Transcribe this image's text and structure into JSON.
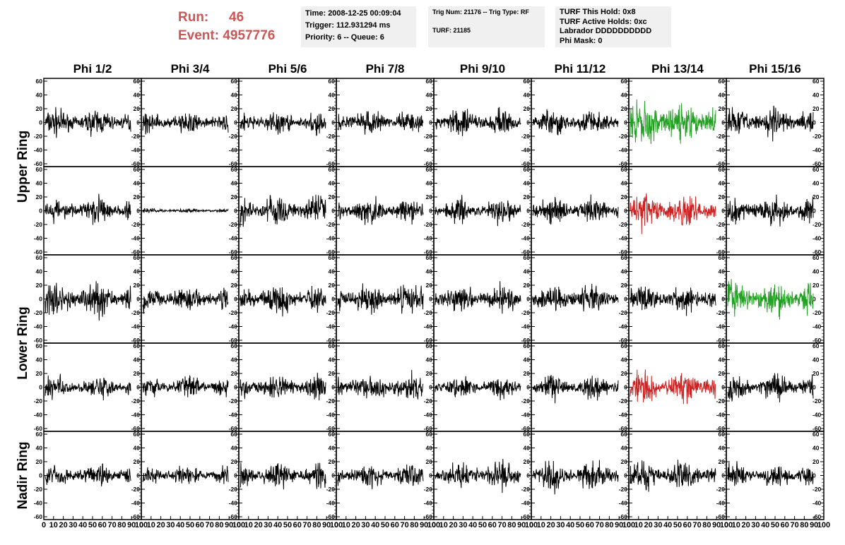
{
  "header": {
    "run_label": "Run:",
    "run_value": "46",
    "event_label": "Event:",
    "event_value": "4957776"
  },
  "info_boxes": {
    "box1": [
      "Time: 2008-12-25 00:09:04",
      "Trigger: 112.931294 ms",
      "Priority: 6 -- Queue: 6"
    ],
    "box2": [
      "Trig Num: 21176 -- Trig Type: RF",
      "",
      "TURF: 21185"
    ],
    "box3": [
      "TURF This Hold: 0x8",
      "TURF Active Holds: 0xc",
      "Labrador DDDDDDDDDD",
      "Phi Mask: 0"
    ]
  },
  "colors": {
    "header_text": "#cc5555",
    "trace_default": "#000000",
    "trace_green": "#22a022",
    "trace_red": "#cc2222",
    "info_background": "#f0f0f0"
  },
  "chart_data": {
    "type": "line",
    "columns": [
      "Phi 1/2",
      "Phi 3/4",
      "Phi 5/6",
      "Phi 7/8",
      "Phi 9/10",
      "Phi 11/12",
      "Phi 13/14",
      "Phi 15/16"
    ],
    "row_groups": [
      {
        "label": "Upper Ring",
        "rows": [
          0,
          1
        ]
      },
      {
        "label": "Lower Ring",
        "rows": [
          2,
          3
        ]
      },
      {
        "label": "Nadir Ring",
        "rows": [
          4
        ]
      }
    ],
    "row_count": 5,
    "xlim": [
      0,
      100
    ],
    "ylim": [
      -60,
      60
    ],
    "x_ticks": [
      0,
      10,
      20,
      30,
      40,
      50,
      60,
      70,
      80,
      90,
      100
    ],
    "y_ticks": [
      -60,
      -40,
      -20,
      0,
      20,
      40,
      60
    ],
    "trace_amplitude": [
      [
        12,
        10,
        10,
        11,
        12,
        11,
        20,
        14
      ],
      [
        11,
        2,
        13,
        12,
        11,
        12,
        15,
        13
      ],
      [
        15,
        11,
        13,
        14,
        12,
        13,
        13,
        16
      ],
      [
        10,
        10,
        11,
        13,
        10,
        11,
        15,
        12
      ],
      [
        10,
        9,
        11,
        11,
        12,
        13,
        14,
        11
      ]
    ],
    "trace_color": [
      [
        "default",
        "default",
        "default",
        "default",
        "default",
        "default",
        "green",
        "default"
      ],
      [
        "default",
        "default",
        "default",
        "default",
        "default",
        "default",
        "red",
        "default"
      ],
      [
        "default",
        "default",
        "default",
        "default",
        "default",
        "default",
        "default",
        "green"
      ],
      [
        "default",
        "default",
        "default",
        "default",
        "default",
        "default",
        "red",
        "default"
      ],
      [
        "default",
        "default",
        "default",
        "default",
        "default",
        "default",
        "default",
        "default"
      ]
    ]
  }
}
